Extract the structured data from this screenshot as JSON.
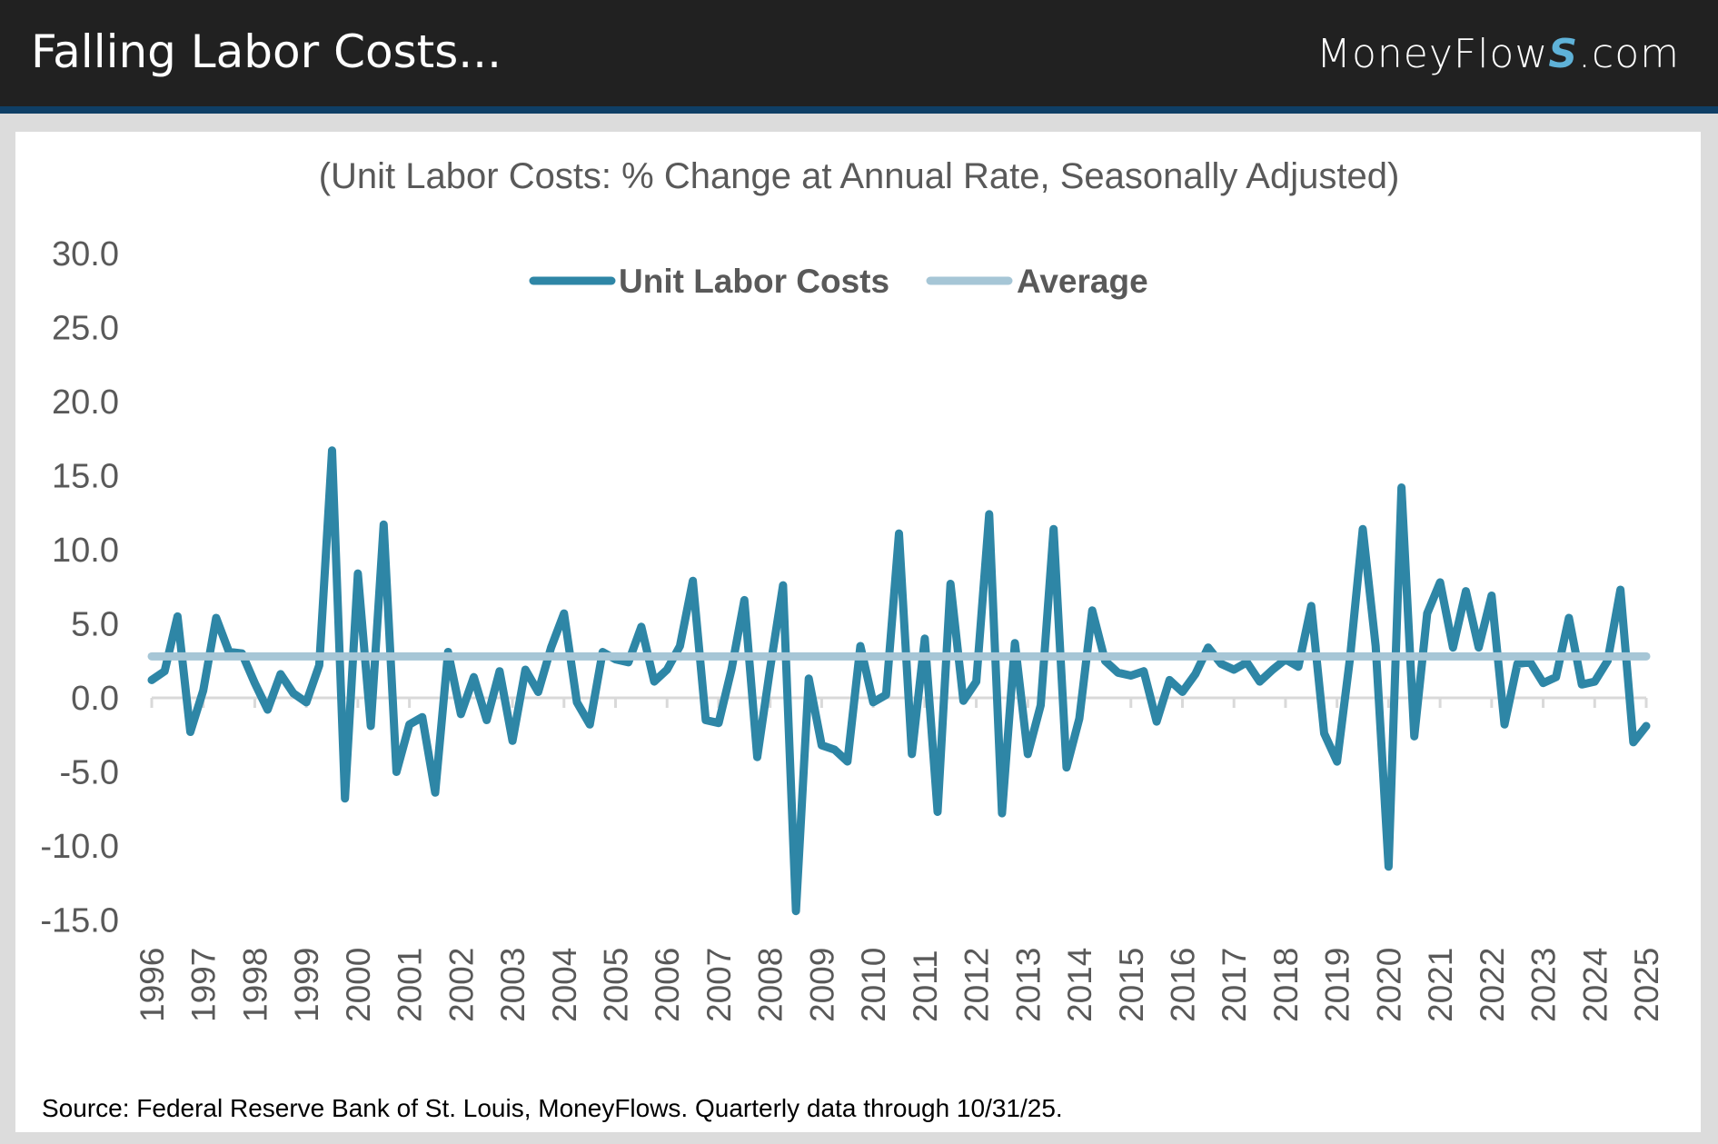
{
  "header": {
    "title": "Falling Labor Costs...",
    "brand_prefix": "MoneyFlow",
    "brand_s": "S",
    "brand_suffix": ".com"
  },
  "colors": {
    "header_bg": "#212121",
    "header_band": "#0f3f66",
    "series_ulc": "#2e86a6",
    "series_avg": "#a6c6d6",
    "axis": "#d9d9d9",
    "text": "#595959"
  },
  "chart_data": {
    "type": "line",
    "title": "(Unit Labor Costs: % Change at Annual Rate, Seasonally Adjusted)",
    "xlabel": "",
    "ylabel": "",
    "ylim": [
      -15,
      30
    ],
    "yticks": [
      30,
      25,
      20,
      15,
      10,
      5,
      0,
      -5,
      -10,
      -15
    ],
    "ytick_labels": [
      "30.0",
      "25.0",
      "20.0",
      "15.0",
      "10.0",
      "5.0",
      "0.0",
      "-5.0",
      "-10.0",
      "-15.0"
    ],
    "xtick_labels": [
      "1996",
      "1997",
      "1998",
      "1999",
      "2000",
      "2001",
      "2002",
      "2003",
      "2004",
      "2005",
      "2006",
      "2007",
      "2008",
      "2009",
      "2010",
      "2011",
      "2012",
      "2013",
      "2014",
      "2015",
      "2016",
      "2017",
      "2018",
      "2019",
      "2020",
      "2021",
      "2022",
      "2023",
      "2024",
      "2025"
    ],
    "x_start": "1996 Q1",
    "x_frequency": "quarterly",
    "grid": false,
    "legend_position": "top-center",
    "legend": [
      "Unit Labor Costs",
      "Average"
    ],
    "series": [
      {
        "name": "Unit Labor Costs",
        "values": [
          1.2,
          1.8,
          5.5,
          -2.3,
          0.5,
          5.4,
          3.1,
          3.0,
          1.0,
          -0.8,
          1.6,
          0.3,
          -0.3,
          2.2,
          16.7,
          -6.8,
          8.4,
          -1.9,
          11.7,
          -5.0,
          -1.8,
          -1.3,
          -6.4,
          3.1,
          -1.1,
          1.4,
          -1.5,
          1.8,
          -2.9,
          1.9,
          0.4,
          3.4,
          5.7,
          -0.3,
          -1.8,
          3.1,
          2.6,
          2.4,
          4.8,
          1.1,
          1.9,
          3.5,
          7.9,
          -1.5,
          -1.7,
          1.9,
          6.6,
          -4.0,
          2.0,
          7.6,
          -14.4,
          1.3,
          -3.2,
          -3.5,
          -4.3,
          3.5,
          -0.3,
          0.2,
          11.1,
          -3.8,
          4.0,
          -7.7,
          7.7,
          -0.2,
          1.1,
          12.4,
          -7.8,
          3.7,
          -3.8,
          -0.5,
          11.4,
          -4.7,
          -1.4,
          5.9,
          2.5,
          1.7,
          1.5,
          1.8,
          -1.6,
          1.2,
          0.4,
          1.6,
          3.4,
          2.3,
          1.9,
          2.4,
          1.1,
          1.9,
          2.6,
          2.1,
          6.2,
          -2.4,
          -4.3,
          2.6,
          11.4,
          3.5,
          -11.4,
          14.2,
          -2.6,
          5.7,
          7.8,
          3.4,
          7.2,
          3.4,
          6.9,
          -1.8,
          2.3,
          2.4,
          1.0,
          1.4,
          5.4,
          0.9,
          1.1,
          2.5,
          7.3,
          -3.0,
          -1.9
        ]
      },
      {
        "name": "Average",
        "values_constant": 2.8
      }
    ]
  },
  "footer": {
    "source": "Source: Federal Reserve Bank of St. Louis, MoneyFlows. Quarterly data through 10/31/25."
  }
}
